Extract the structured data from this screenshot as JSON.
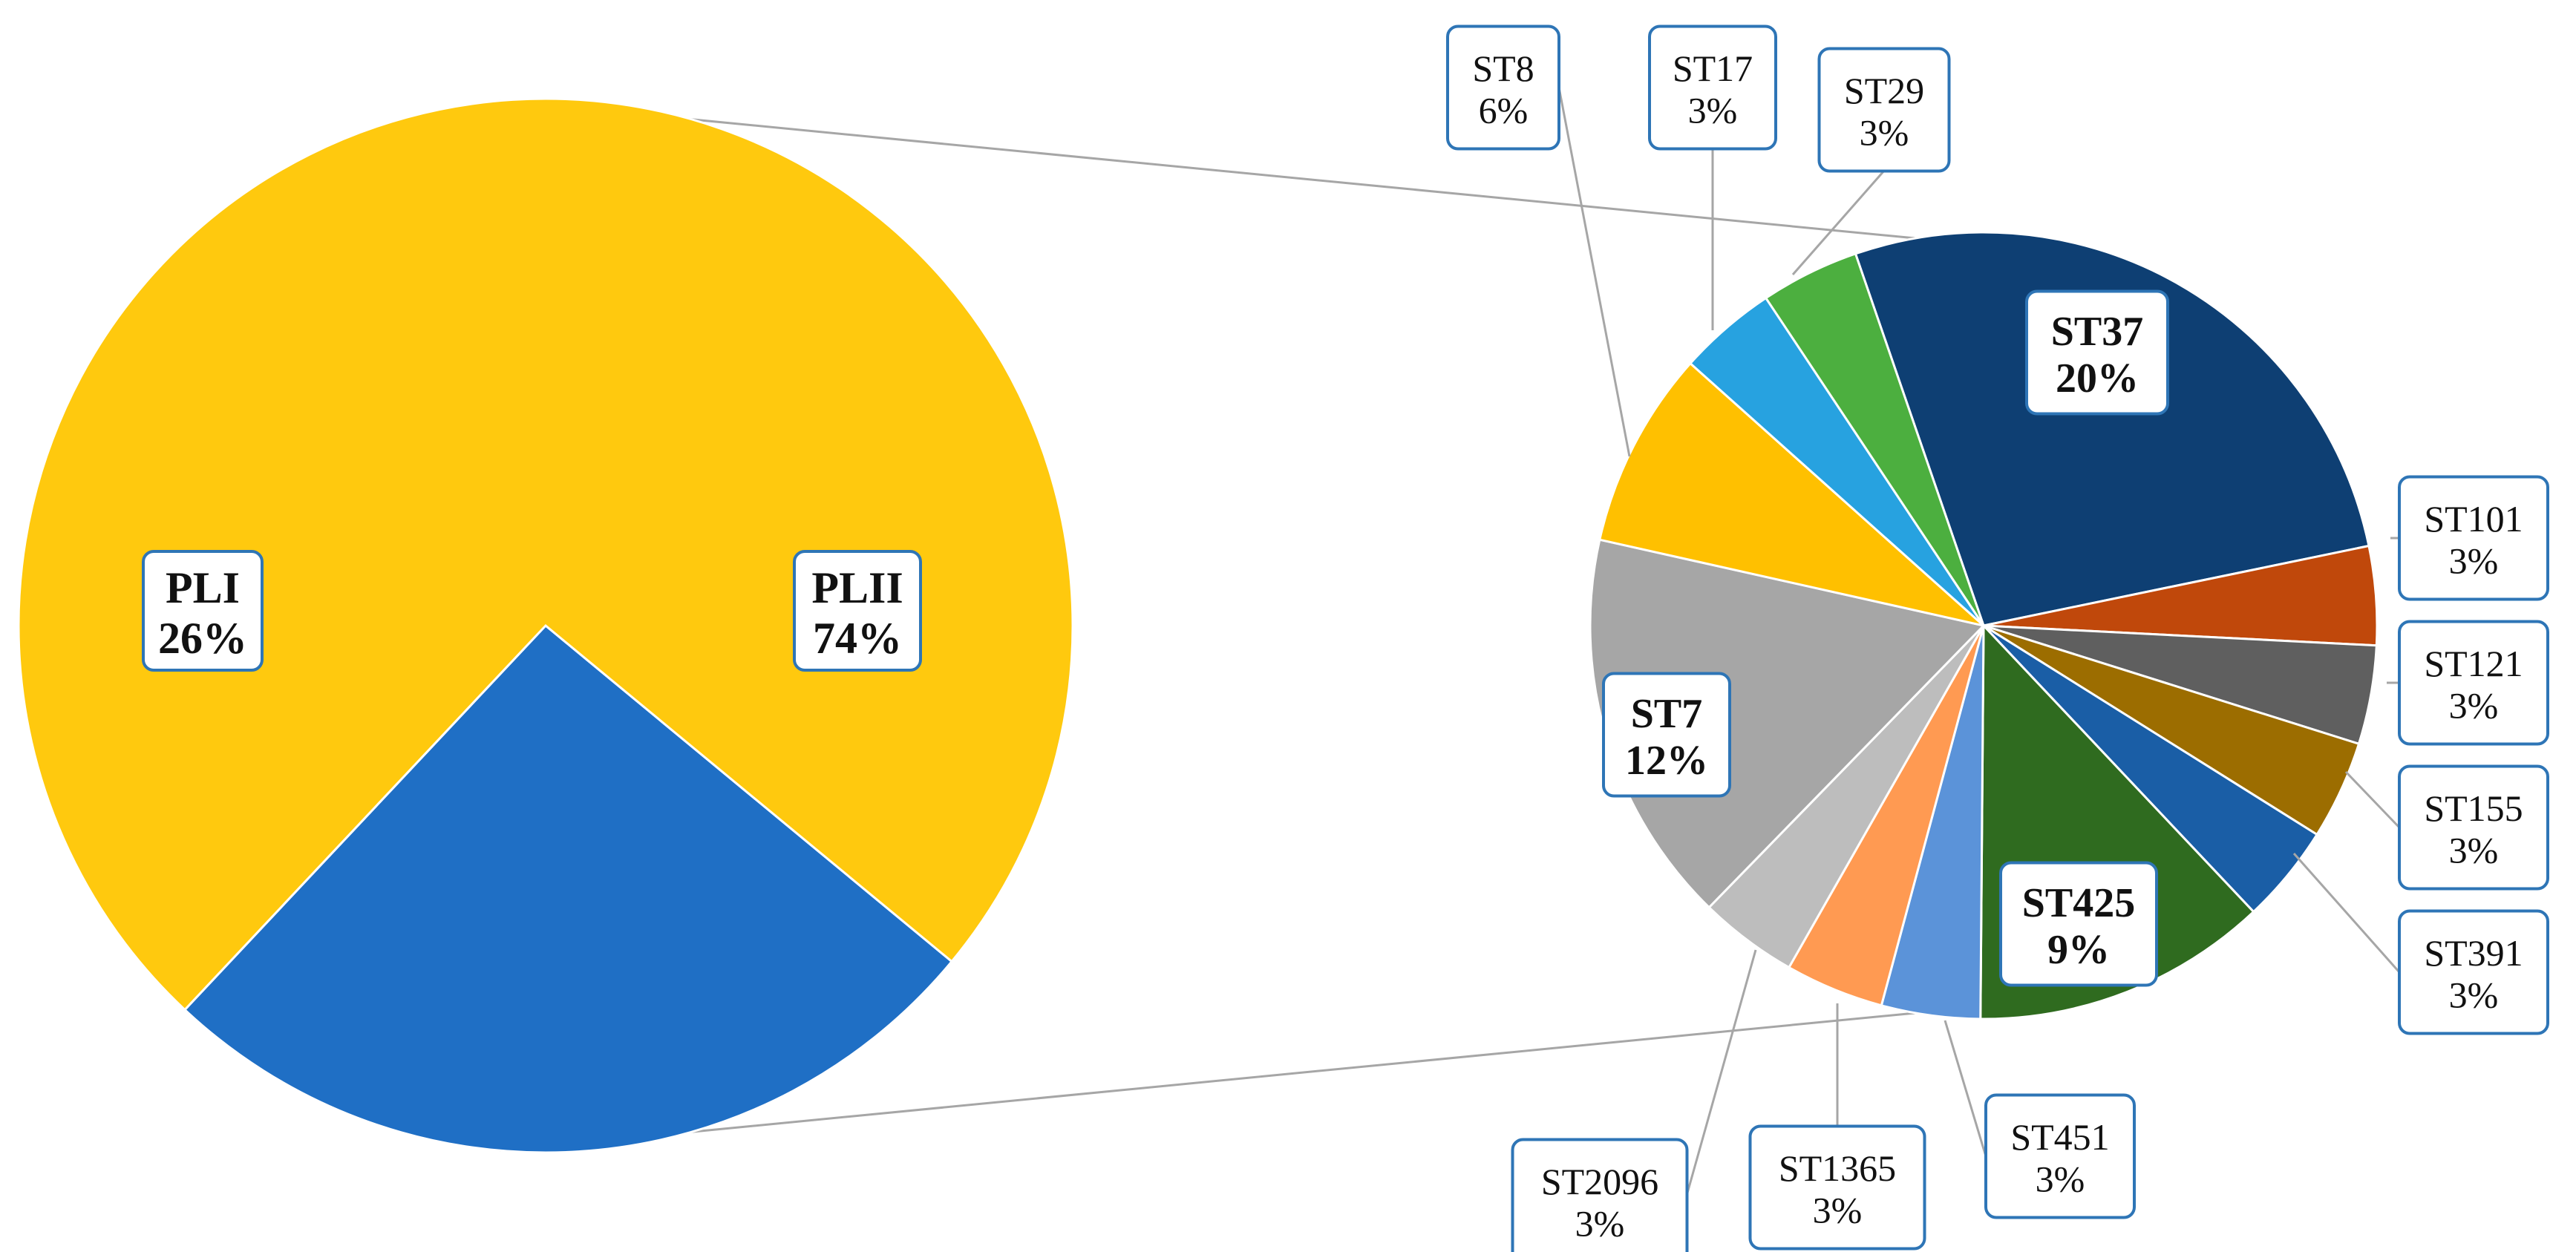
{
  "chart_data": [
    {
      "type": "pie",
      "title": "",
      "slices": [
        {
          "name": "PLI",
          "value": 26,
          "label": "26%",
          "color": "#1f6fc5"
        },
        {
          "name": "PLII",
          "value": 74,
          "label": "74%",
          "color": "#ffc90e"
        }
      ]
    },
    {
      "type": "pie",
      "title": "",
      "slices": [
        {
          "name": "ST37",
          "value": 20,
          "label": "20%",
          "color": "#0e3f73"
        },
        {
          "name": "ST101",
          "value": 3,
          "label": "3%",
          "color": "#c0480b"
        },
        {
          "name": "ST121",
          "value": 3,
          "label": "3%",
          "color": "#5f5f5f"
        },
        {
          "name": "ST155",
          "value": 3,
          "label": "3%",
          "color": "#9c6d00"
        },
        {
          "name": "ST391",
          "value": 3,
          "label": "3%",
          "color": "#1a5ea6"
        },
        {
          "name": "ST425",
          "value": 9,
          "label": "9%",
          "color": "#2f6b1f"
        },
        {
          "name": "ST451",
          "value": 3,
          "label": "3%",
          "color": "#5b93d9"
        },
        {
          "name": "ST1365",
          "value": 3,
          "label": "3%",
          "color": "#ff9a52"
        },
        {
          "name": "ST2096",
          "value": 3,
          "label": "3%",
          "color": "#bdbdbd"
        },
        {
          "name": "ST7",
          "value": 12,
          "label": "12%",
          "color": "#a6a6a6"
        },
        {
          "name": "ST8",
          "value": 6,
          "label": "6%",
          "color": "#ffc000"
        },
        {
          "name": "ST17",
          "value": 3,
          "label": "3%",
          "color": "#27a2e0"
        },
        {
          "name": "ST29",
          "value": 3,
          "label": "3%",
          "color": "#4caf3f"
        }
      ]
    }
  ]
}
